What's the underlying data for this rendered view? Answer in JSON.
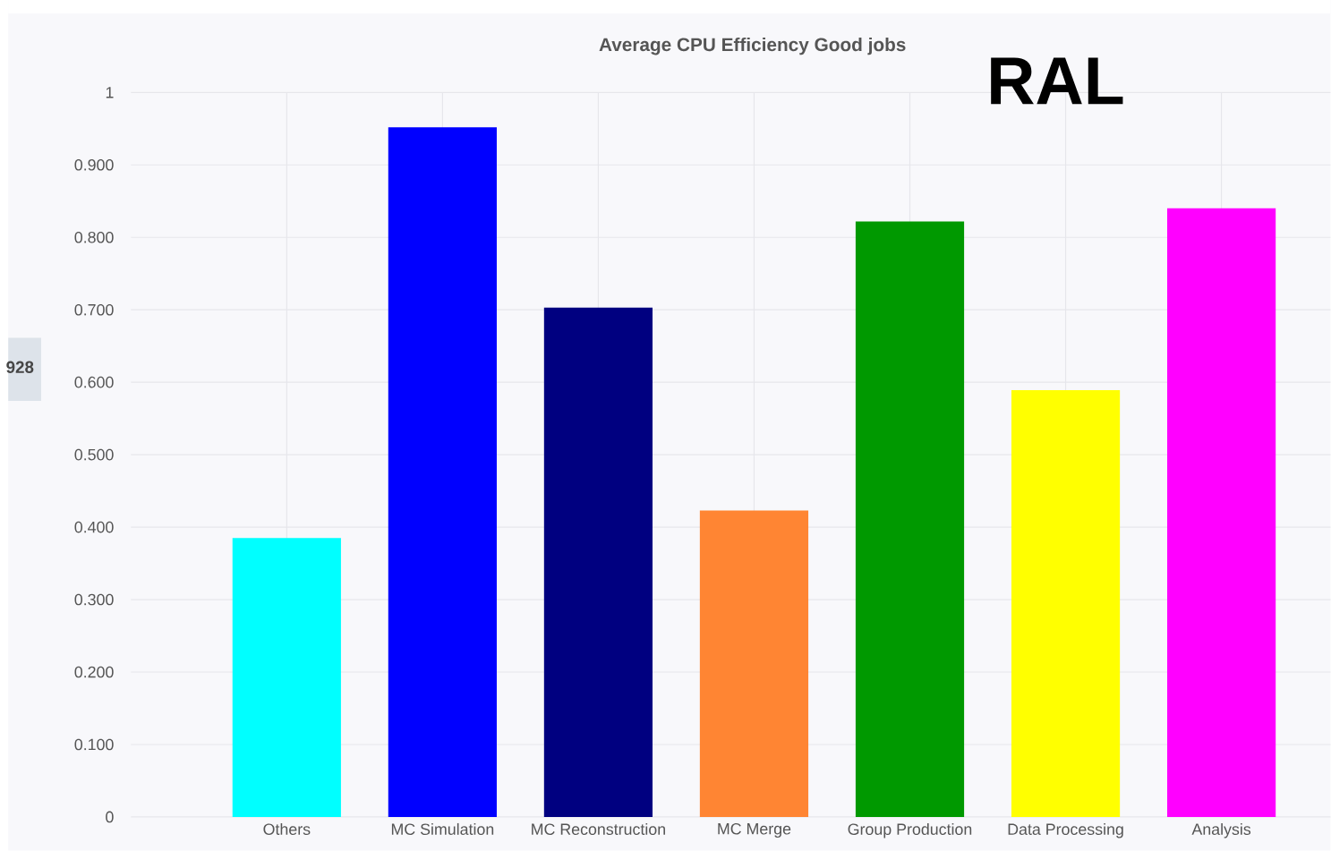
{
  "chart_data": {
    "type": "bar",
    "title": "Average CPU Efficiency Good jobs",
    "categories": [
      "Others",
      "MC Simulation",
      "MC Reconstruction",
      "MC Merge",
      "Group Production",
      "Data Processing",
      "Analysis"
    ],
    "values": [
      0.385,
      0.952,
      0.703,
      0.423,
      0.822,
      0.589,
      0.84
    ],
    "colors": [
      "#00ffff",
      "#0000ff",
      "#000080",
      "#ff8533",
      "#009900",
      "#ffff00",
      "#ff00ff"
    ],
    "ylim": [
      0,
      1
    ],
    "yticks": [
      0,
      {
        "value": 0.1,
        "label": "0.100"
      },
      {
        "value": 0.2,
        "label": "0.200"
      },
      {
        "value": 0.3,
        "label": "0.300"
      },
      {
        "value": 0.4,
        "label": "0.400"
      },
      {
        "value": 0.5,
        "label": "0.500"
      },
      {
        "value": 0.6,
        "label": "0.600"
      },
      {
        "value": 0.7,
        "label": "0.700"
      },
      {
        "value": 0.8,
        "label": "0.800"
      },
      {
        "value": 0.9,
        "label": "0.900"
      },
      1
    ],
    "grid": true,
    "annotations": [
      "RAL",
      "928"
    ]
  }
}
